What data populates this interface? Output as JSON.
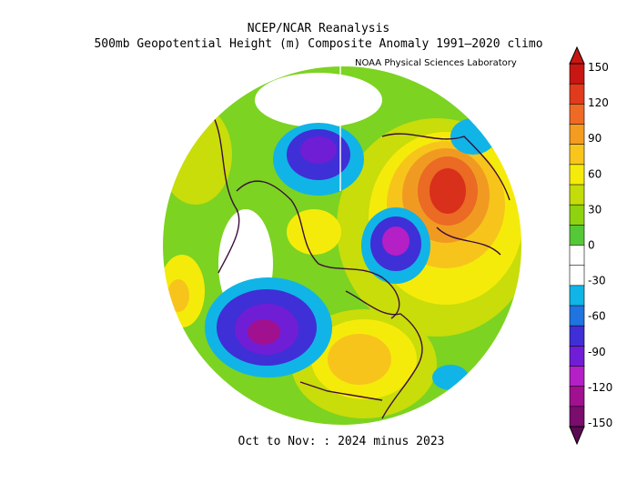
{
  "header": {
    "title_line1": "NCEP/NCAR Reanalysis",
    "title_line2": "500mb Geopotential Height (m) Composite Anomaly 1991–2020 climo",
    "credit": "NOAA Physical Sciences Laboratory"
  },
  "footer": {
    "period": "Oct to Nov: : 2024 minus 2023"
  },
  "colorbar": {
    "labels": [
      "150",
      "120",
      "90",
      "60",
      "30",
      "0",
      "-30",
      "-60",
      "-90",
      "-120",
      "-150"
    ],
    "colors": [
      "#7a0d6e",
      "#a0108f",
      "#b41fc6",
      "#6f1ed6",
      "#3f2fd6",
      "#1f74e0",
      "#11b4e6",
      "#ffffff",
      "#ffffff",
      "#55c837",
      "#8fd20f",
      "#c4dc0a",
      "#f5eb0a",
      "#f8c51c",
      "#f49b22",
      "#ef6a24",
      "#e23a1c",
      "#c81712"
    ]
  }
}
